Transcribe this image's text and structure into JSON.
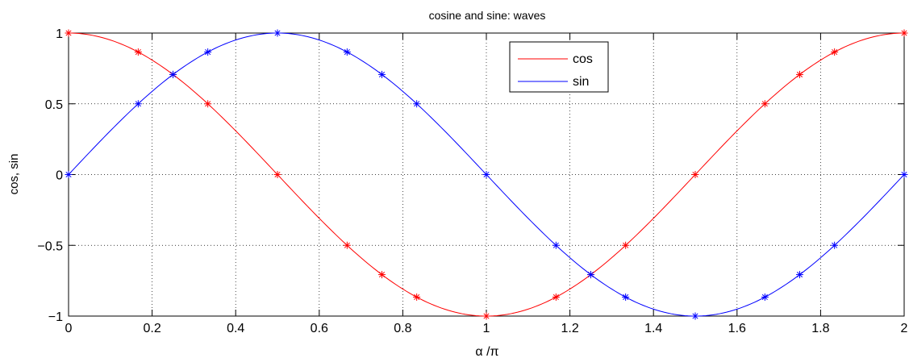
{
  "chart_data": {
    "type": "line",
    "title": "cosine and sine: waves",
    "xlabel": "α /π",
    "ylabel": "cos, sin",
    "xlim": [
      0,
      2
    ],
    "ylim": [
      -1,
      1
    ],
    "grid": true,
    "legend_position": "top-center",
    "x_ticks": [
      0,
      0.2,
      0.4,
      0.6,
      0.8,
      1,
      1.2,
      1.4,
      1.6,
      1.8,
      2
    ],
    "x_tick_labels": [
      "0",
      "0.2",
      "0.4",
      "0.6",
      "0.8",
      "1",
      "1.2",
      "1.4",
      "1.6",
      "1.8",
      "2"
    ],
    "y_ticks": [
      1,
      0.5,
      0,
      -0.5,
      -1
    ],
    "y_tick_labels": [
      "1",
      "0.5",
      "0",
      "−0.5",
      "−1"
    ],
    "marker_x": [
      0,
      0.1667,
      0.25,
      0.3333,
      0.5,
      0.6667,
      0.75,
      0.8333,
      1,
      1.1667,
      1.25,
      1.3333,
      1.5,
      1.6667,
      1.75,
      1.8333,
      2
    ],
    "series": [
      {
        "name": "cos",
        "function": "cos",
        "color": "#ff0000",
        "marker": "asterisk",
        "marker_values": [
          1,
          0.866,
          0.707,
          0.5,
          0,
          -0.5,
          -0.707,
          -0.866,
          -1,
          -0.866,
          -0.707,
          -0.5,
          0,
          0.5,
          0.707,
          0.866,
          1
        ]
      },
      {
        "name": "sin",
        "function": "sin",
        "color": "#0000ff",
        "marker": "asterisk",
        "marker_values": [
          0,
          0.5,
          0.707,
          0.866,
          1,
          0.866,
          0.707,
          0.5,
          0,
          -0.5,
          -0.707,
          -0.866,
          -1,
          -0.866,
          -0.707,
          -0.5,
          0
        ]
      }
    ]
  }
}
